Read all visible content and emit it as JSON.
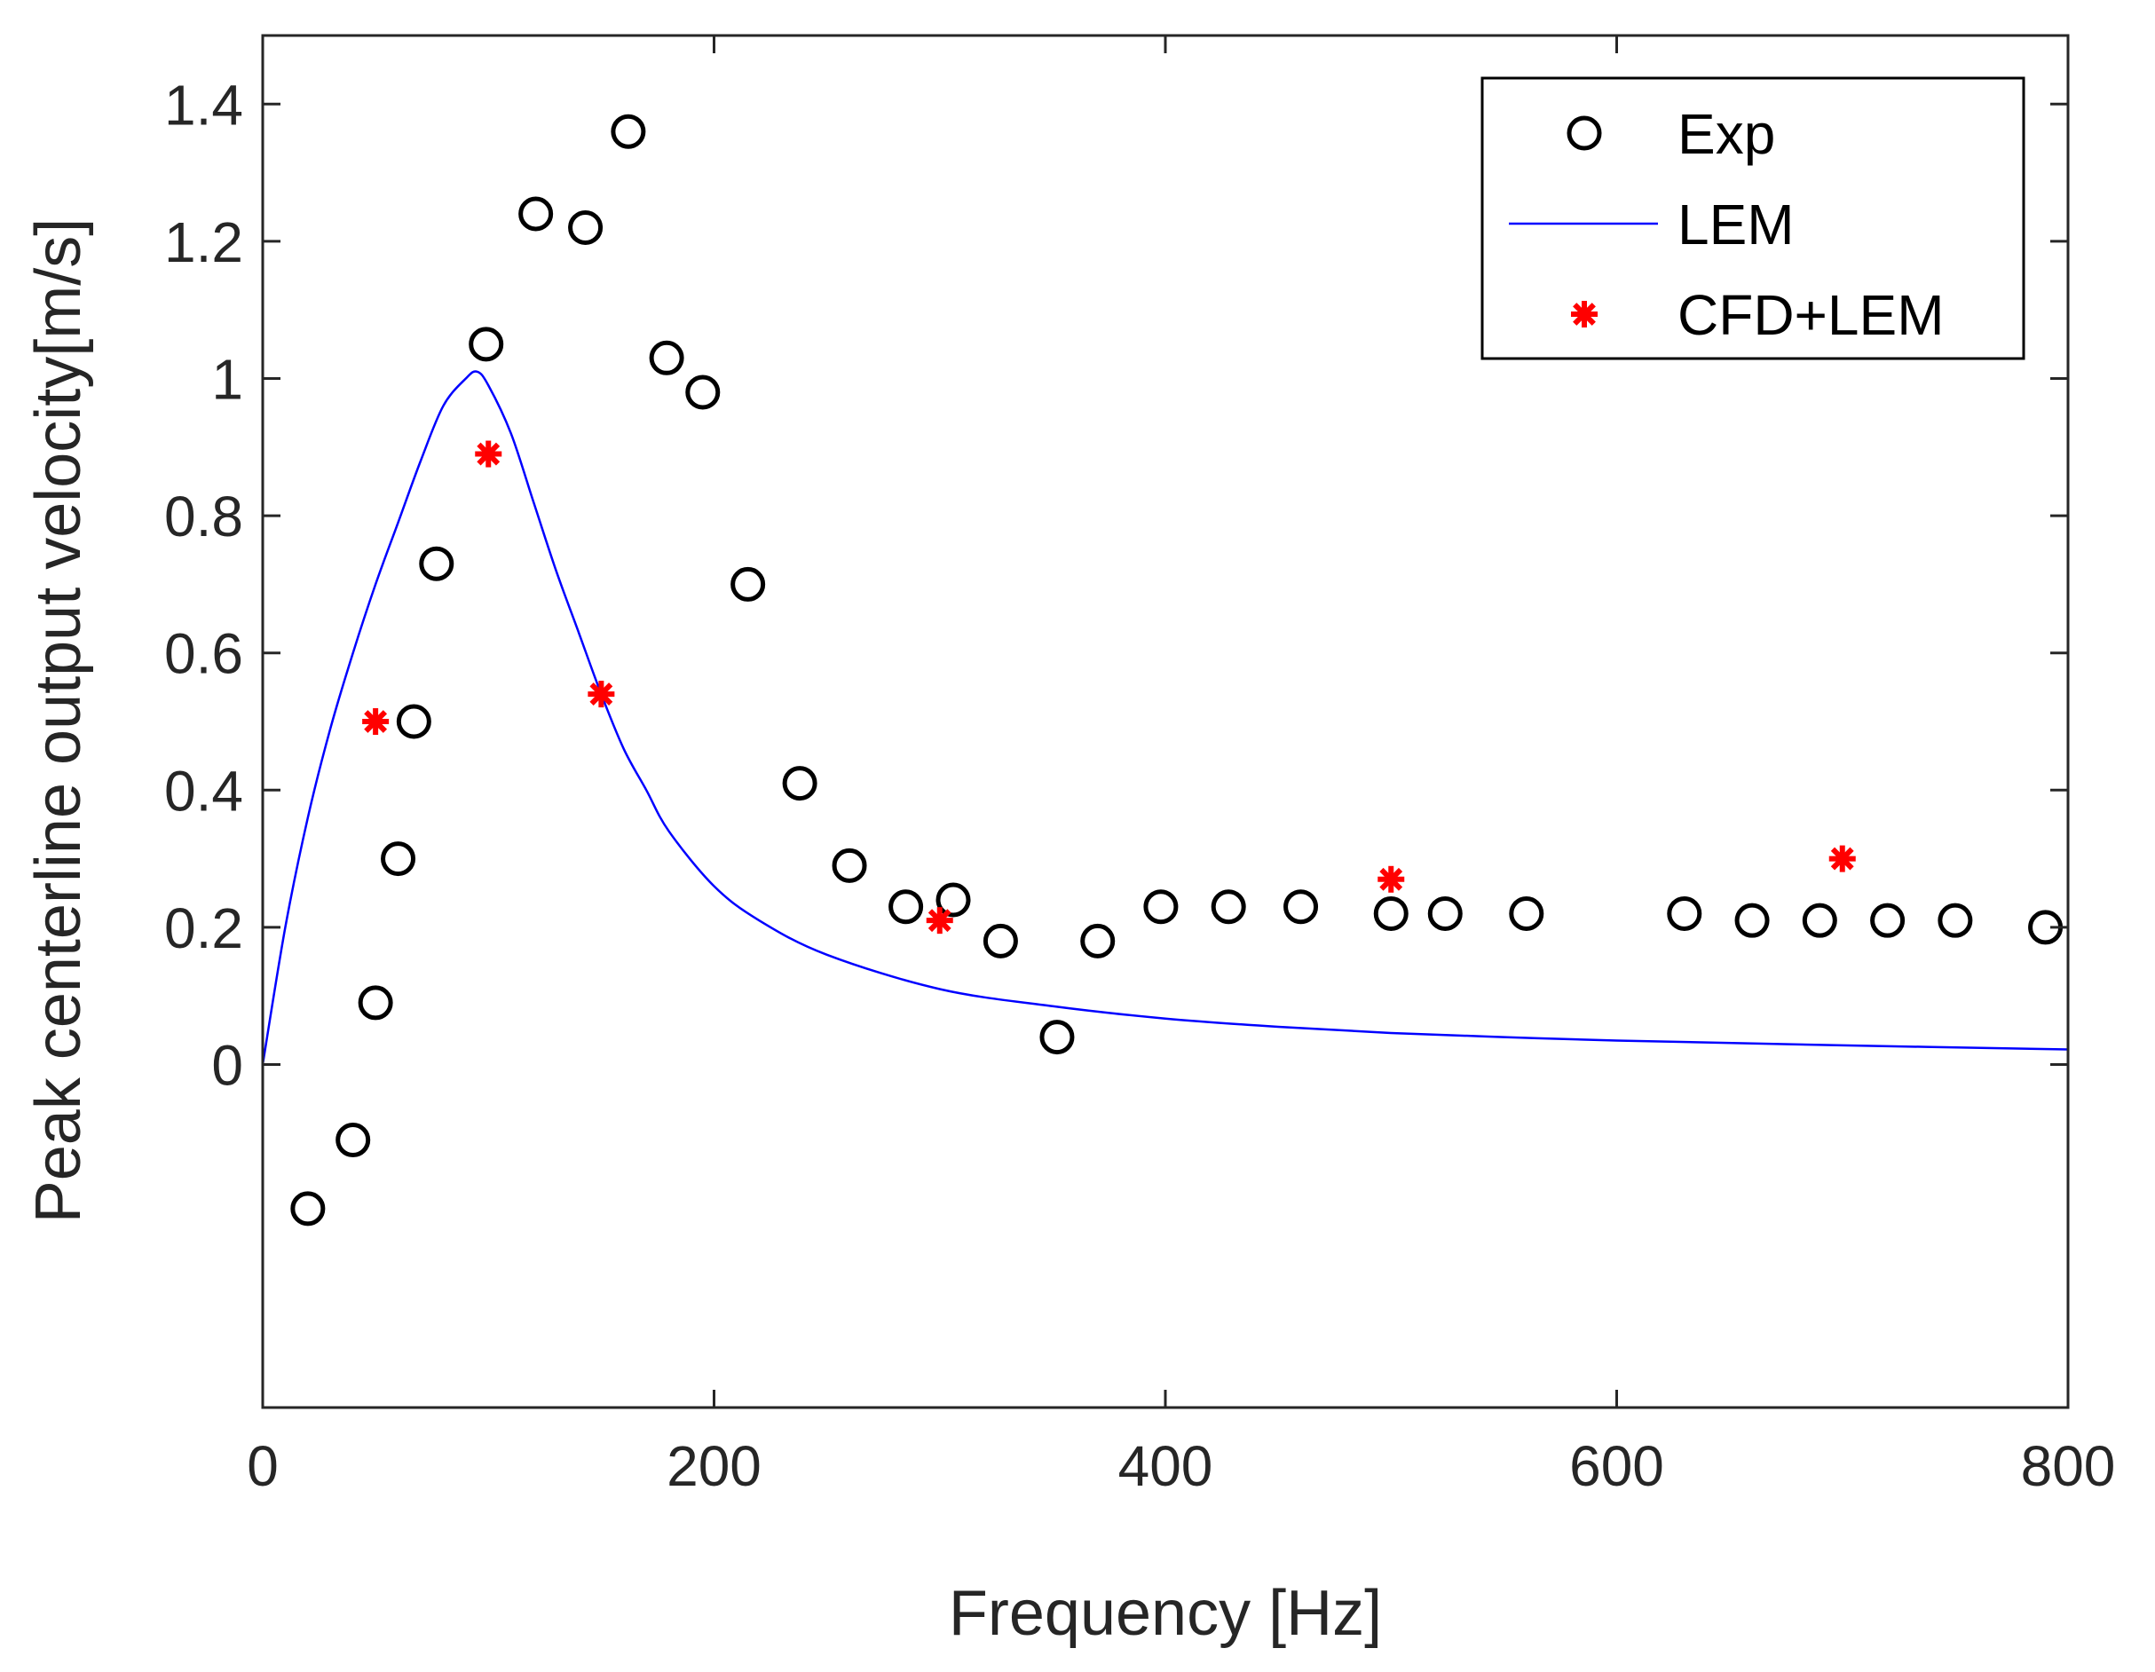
{
  "chart_data": {
    "type": "scatter",
    "xlabel": "Frequency [Hz]",
    "ylabel": "Peak centerline output velocity[m/s]",
    "xlim": [
      0,
      800
    ],
    "ylim": [
      -0.5,
      1.5
    ],
    "xticks": [
      0,
      200,
      400,
      600,
      800
    ],
    "xtick_labels": [
      "0",
      "200",
      "400",
      "600",
      "800"
    ],
    "yticks": [
      0,
      0.2,
      0.4,
      0.6,
      0.8,
      1,
      1.2,
      1.4
    ],
    "ytick_labels": [
      "0",
      "0.2",
      "0.4",
      "0.6",
      "0.8",
      "1",
      "1.2",
      "1.4"
    ],
    "grid": false,
    "legend_position": "top-right",
    "series": [
      {
        "name": "Exp",
        "kind": "marker-circle",
        "color": "#000000",
        "x": [
          20,
          40,
          50,
          60,
          67,
          77,
          99,
          121,
          143,
          162,
          179,
          195,
          215,
          238,
          260,
          285,
          306,
          327,
          352,
          370,
          398,
          428,
          460,
          500,
          524,
          560,
          630,
          660,
          690,
          720,
          750,
          790
        ],
        "y": [
          -0.21,
          -0.11,
          0.09,
          0.3,
          0.5,
          0.73,
          1.05,
          1.24,
          1.22,
          1.36,
          1.03,
          0.98,
          0.7,
          0.41,
          0.29,
          0.23,
          0.24,
          0.18,
          0.04,
          0.18,
          0.23,
          0.23,
          0.23,
          0.22,
          0.22,
          0.22,
          0.22,
          0.21,
          0.21,
          0.21,
          0.21,
          0.2
        ]
      },
      {
        "name": "LEM",
        "kind": "line",
        "color": "#0000ff",
        "x": [
          0,
          10,
          20,
          30,
          40,
          50,
          60,
          70,
          80,
          90,
          95,
          100,
          110,
          120,
          130,
          140,
          150,
          160,
          170,
          180,
          200,
          220,
          250,
          300,
          350,
          400,
          450,
          500,
          550,
          600,
          700,
          800
        ],
        "y": [
          0,
          0.2,
          0.36,
          0.49,
          0.6,
          0.7,
          0.79,
          0.88,
          0.96,
          1.0,
          1.01,
          0.99,
          0.92,
          0.82,
          0.72,
          0.63,
          0.54,
          0.46,
          0.4,
          0.34,
          0.26,
          0.21,
          0.16,
          0.11,
          0.085,
          0.067,
          0.055,
          0.046,
          0.04,
          0.035,
          0.028,
          0.022
        ]
      },
      {
        "name": "CFD+LEM",
        "kind": "marker-star",
        "color": "#ff0000",
        "x": [
          50,
          100,
          150,
          300,
          500,
          700
        ],
        "y": [
          0.5,
          0.89,
          0.54,
          0.21,
          0.27,
          0.3
        ]
      }
    ]
  }
}
